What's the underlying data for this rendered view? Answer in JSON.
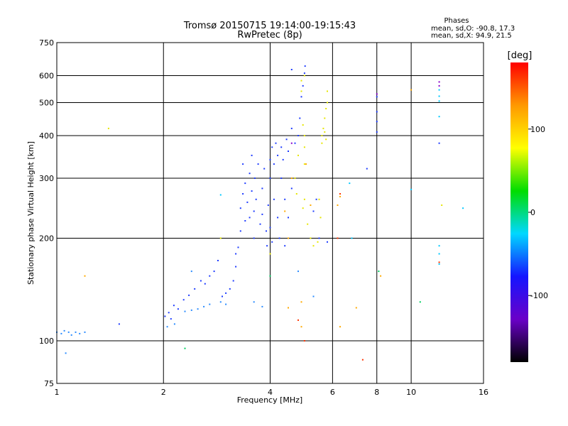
{
  "chart_data": {
    "type": "scatter",
    "title": "Tromsø 20150715 19:14:00-19:15:43",
    "subtitle": "RwPretec (8p)",
    "xlabel": "Frequency [MHz]",
    "ylabel": "Stationary phase Virtual Height [km]",
    "x_scale": "log",
    "y_scale": "log",
    "xlim": [
      1,
      16
    ],
    "ylim": [
      75,
      750
    ],
    "x_ticks": [
      1,
      2,
      4,
      6,
      8,
      10,
      16
    ],
    "x_tick_labels": [
      "1",
      "2",
      "4",
      "6",
      "8",
      "10",
      "16"
    ],
    "y_ticks": [
      75,
      100,
      200,
      300,
      400,
      500,
      600,
      750
    ],
    "y_tick_labels": [
      "75",
      "100",
      "200",
      "300",
      "400",
      "500",
      "600",
      "750"
    ],
    "grid": true,
    "stats": {
      "heading": "Phases",
      "line_o": "mean, sd,O: -90.8, 17.3",
      "line_x": "mean, sd,X:  94.9, 21.5"
    },
    "colorbar": {
      "label": "[deg]",
      "range": [
        -180,
        180
      ],
      "ticks": [
        100,
        0,
        -100
      ],
      "tick_labels": [
        "100",
        "0",
        "-100"
      ],
      "stops": [
        "#000000",
        "#6a00c8",
        "#1515ff",
        "#00d8ff",
        "#00dd00",
        "#ffff00",
        "#ff9900",
        "#ff0000"
      ]
    },
    "series": [
      {
        "color": "#1e3cff",
        "points": [
          [
            1.5,
            112
          ],
          [
            2.02,
            118
          ],
          [
            2.07,
            121
          ],
          [
            2.1,
            116
          ],
          [
            2.14,
            127
          ],
          [
            2.2,
            124
          ],
          [
            2.28,
            132
          ],
          [
            2.36,
            136
          ],
          [
            2.45,
            142
          ],
          [
            2.55,
            150
          ],
          [
            2.62,
            147
          ],
          [
            2.7,
            155
          ],
          [
            2.78,
            160
          ],
          [
            2.85,
            172
          ],
          [
            2.93,
            135
          ],
          [
            3.0,
            138
          ],
          [
            3.08,
            142
          ],
          [
            3.15,
            150
          ],
          [
            3.2,
            165
          ],
          [
            3.25,
            188
          ],
          [
            3.3,
            210
          ],
          [
            3.3,
            245
          ],
          [
            3.35,
            270
          ],
          [
            3.35,
            330
          ],
          [
            3.4,
            290
          ],
          [
            3.4,
            225
          ],
          [
            3.45,
            255
          ],
          [
            3.5,
            310
          ],
          [
            3.55,
            275
          ],
          [
            3.55,
            350
          ],
          [
            3.6,
            240
          ],
          [
            3.62,
            300
          ],
          [
            3.65,
            260
          ],
          [
            3.7,
            330
          ],
          [
            3.75,
            220
          ],
          [
            3.8,
            280
          ],
          [
            3.85,
            320
          ],
          [
            3.9,
            210
          ],
          [
            3.92,
            190
          ],
          [
            3.95,
            250
          ],
          [
            4.0,
            300
          ],
          [
            4.0,
            340
          ],
          [
            4.05,
            370
          ],
          [
            4.05,
            195
          ],
          [
            4.1,
            260
          ],
          [
            4.1,
            330
          ],
          [
            4.15,
            380
          ],
          [
            4.2,
            350
          ],
          [
            4.2,
            230
          ],
          [
            4.25,
            200
          ],
          [
            4.3,
            300
          ],
          [
            4.3,
            370
          ],
          [
            4.35,
            340
          ],
          [
            4.4,
            260
          ],
          [
            4.45,
            390
          ],
          [
            4.5,
            360
          ],
          [
            4.5,
            230
          ],
          [
            4.6,
            420
          ],
          [
            4.6,
            280
          ],
          [
            4.7,
            380
          ],
          [
            4.8,
            400
          ],
          [
            4.85,
            450
          ],
          [
            4.9,
            520
          ],
          [
            4.95,
            560
          ],
          [
            5.0,
            610
          ],
          [
            5.02,
            640
          ],
          [
            4.6,
            625
          ],
          [
            5.3,
            240
          ],
          [
            5.4,
            260
          ],
          [
            5.5,
            200
          ],
          [
            5.8,
            195
          ],
          [
            4.4,
            190
          ],
          [
            4.0,
            215
          ],
          [
            3.6,
            200
          ],
          [
            3.8,
            235
          ],
          [
            3.5,
            230
          ],
          [
            3.2,
            180
          ],
          [
            7.5,
            320
          ],
          [
            8.0,
            470
          ],
          [
            8.0,
            440
          ],
          [
            8.0,
            410
          ],
          [
            8.0,
            520
          ],
          [
            12.0,
            380
          ]
        ]
      },
      {
        "color": "#2a8cff",
        "points": [
          [
            1.0,
            106
          ],
          [
            1.03,
            105
          ],
          [
            1.05,
            107
          ],
          [
            1.08,
            106
          ],
          [
            1.1,
            104
          ],
          [
            1.13,
            106
          ],
          [
            1.16,
            105
          ],
          [
            1.2,
            106
          ],
          [
            1.06,
            92
          ],
          [
            2.05,
            110
          ],
          [
            2.15,
            112
          ],
          [
            2.3,
            122
          ],
          [
            2.4,
            123
          ],
          [
            2.5,
            124
          ],
          [
            2.6,
            126
          ],
          [
            2.7,
            128
          ],
          [
            2.9,
            130
          ],
          [
            3.0,
            128
          ],
          [
            2.4,
            160
          ],
          [
            3.6,
            130
          ],
          [
            3.8,
            126
          ],
          [
            4.8,
            160
          ],
          [
            5.3,
            135
          ]
        ]
      },
      {
        "color": "#00c8ff",
        "points": [
          [
            2.9,
            268
          ],
          [
            6.7,
            290
          ],
          [
            6.8,
            200
          ],
          [
            10.0,
            278
          ],
          [
            12.0,
            545
          ],
          [
            12.0,
            522
          ],
          [
            12.0,
            505
          ],
          [
            12.0,
            455
          ],
          [
            12.0,
            190
          ],
          [
            12.0,
            180
          ],
          [
            12.0,
            168
          ],
          [
            14.0,
            245
          ]
        ]
      },
      {
        "color": "#00d060",
        "points": [
          [
            2.3,
            95
          ],
          [
            4.0,
            155
          ],
          [
            8.1,
            160
          ],
          [
            10.6,
            130
          ]
        ]
      },
      {
        "color": "#e6e600",
        "points": [
          [
            4.9,
            580
          ],
          [
            5.0,
            600
          ],
          [
            4.9,
            540
          ],
          [
            4.95,
            430
          ],
          [
            5.0,
            400
          ],
          [
            5.0,
            370
          ],
          [
            5.0,
            330
          ],
          [
            4.8,
            350
          ],
          [
            4.7,
            300
          ],
          [
            4.75,
            270
          ],
          [
            5.0,
            260
          ],
          [
            5.1,
            220
          ],
          [
            5.2,
            200
          ],
          [
            5.3,
            190
          ],
          [
            5.45,
            195
          ],
          [
            4.95,
            245
          ],
          [
            5.6,
            400
          ],
          [
            5.65,
            420
          ],
          [
            5.7,
            450
          ],
          [
            5.75,
            480
          ],
          [
            5.8,
            500
          ],
          [
            5.8,
            540
          ],
          [
            5.6,
            380
          ],
          [
            5.7,
            410
          ],
          [
            5.75,
            390
          ],
          [
            5.5,
            260
          ],
          [
            5.55,
            230
          ],
          [
            4.0,
            180
          ],
          [
            1.4,
            420
          ],
          [
            2.9,
            200
          ],
          [
            12.2,
            250
          ]
        ]
      },
      {
        "color": "#ffaa00",
        "points": [
          [
            4.4,
            240
          ],
          [
            4.5,
            200
          ],
          [
            4.6,
            300
          ],
          [
            5.05,
            330
          ],
          [
            5.2,
            250
          ],
          [
            6.2,
            250
          ],
          [
            6.3,
            265
          ],
          [
            4.9,
            130
          ],
          [
            4.9,
            110
          ],
          [
            6.3,
            110
          ],
          [
            4.5,
            125
          ],
          [
            10.0,
            545
          ],
          [
            1.2,
            155
          ],
          [
            8.2,
            155
          ],
          [
            7.0,
            125
          ]
        ]
      },
      {
        "color": "#ff3300",
        "points": [
          [
            6.3,
            270
          ],
          [
            7.3,
            88
          ],
          [
            5.0,
            100
          ],
          [
            4.8,
            115
          ],
          [
            6.2,
            200
          ],
          [
            12.0,
            170
          ]
        ]
      },
      {
        "color": "#8800cc",
        "points": [
          [
            8.0,
            530
          ],
          [
            12.0,
            575
          ],
          [
            12.0,
            560
          ],
          [
            4.6,
            380
          ]
        ]
      }
    ]
  }
}
